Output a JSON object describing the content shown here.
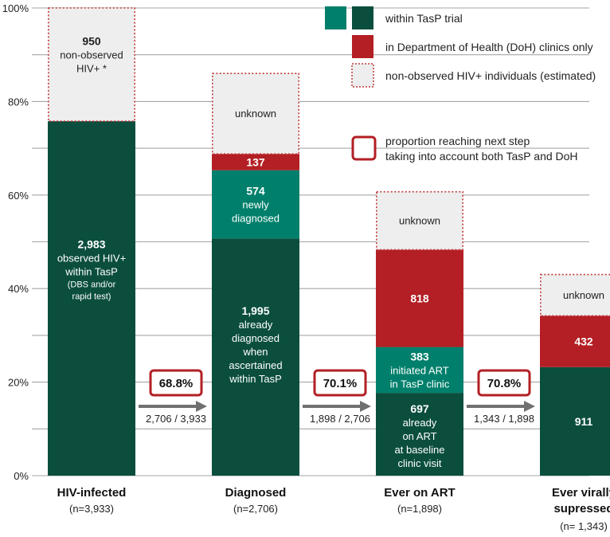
{
  "colors": {
    "dark_green": "#0b4e3e",
    "teal": "#00806c",
    "red": "#b31f24",
    "light_gray": "#eeeeee",
    "dotted_border": "#c0393b",
    "arrow": "#707070",
    "grid": "#a6a6a6"
  },
  "legend": {
    "tasp": "within TasP trial",
    "doh": "in Department of Health (DoH) clinics only",
    "nonobserved": "non-observed HIV+ individuals (estimated)",
    "proportion_line1": "proportion reaching next step",
    "proportion_line2": "taking into account both TasP and DoH"
  },
  "chart_data": {
    "type": "bar",
    "stacked": true,
    "ylim": [
      0,
      100
    ],
    "yticks": [
      "0%",
      "20%",
      "40%",
      "60%",
      "80%",
      "100%"
    ],
    "grid": true,
    "legend_position": "top-right",
    "categories": [
      {
        "label": "HIV-infected",
        "sublabel": "(n=3,933)",
        "segments": [
          {
            "kind": "dark_green",
            "value": 75.8,
            "number": "2,983",
            "lines": [
              "observed HIV+",
              "within TasP"
            ],
            "small_lines": [
              "(DBS and/or",
              "rapid test)"
            ]
          },
          {
            "kind": "nonobserved",
            "value": 24.2,
            "number": "950",
            "lines": [
              "non-observed",
              "HIV+ *"
            ],
            "small_lines": []
          }
        ]
      },
      {
        "label": "Diagnosed",
        "sublabel": "(n=2,706)",
        "segments": [
          {
            "kind": "dark_green",
            "value": 50.7,
            "number": "1,995",
            "lines": [
              "already",
              "diagnosed",
              "when",
              "ascertained",
              "within TasP"
            ],
            "small_lines": []
          },
          {
            "kind": "teal",
            "value": 14.6,
            "number": "574",
            "lines": [
              "newly",
              "diagnosed"
            ],
            "small_lines": []
          },
          {
            "kind": "red",
            "value": 3.5,
            "number": "137",
            "lines": [],
            "small_lines": []
          },
          {
            "kind": "nonobserved",
            "value": 17.2,
            "number": "",
            "lines": [
              "unknown"
            ],
            "small_lines": []
          }
        ]
      },
      {
        "label": "Ever on ART",
        "sublabel": "(n=1,898)",
        "segments": [
          {
            "kind": "dark_green",
            "value": 17.7,
            "number": "697",
            "lines": [
              "already",
              "on ART",
              "at baseline",
              "clinic visit"
            ],
            "small_lines": []
          },
          {
            "kind": "teal",
            "value": 9.8,
            "number": "383",
            "lines": [
              "initiated ART",
              "in TasP clinic"
            ],
            "small_lines": []
          },
          {
            "kind": "red",
            "value": 20.8,
            "number": "818",
            "lines": [],
            "small_lines": []
          },
          {
            "kind": "nonobserved",
            "value": 12.4,
            "number": "",
            "lines": [
              "unknown"
            ],
            "small_lines": []
          }
        ]
      },
      {
        "label": "Ever virally",
        "label2": "supressed",
        "sublabel": "(n= 1,343)",
        "segments": [
          {
            "kind": "dark_green",
            "value": 23.2,
            "number": "911",
            "lines": [],
            "small_lines": []
          },
          {
            "kind": "red",
            "value": 11.0,
            "number": "432",
            "lines": [],
            "small_lines": []
          },
          {
            "kind": "nonobserved",
            "value": 8.8,
            "number": "",
            "lines": [
              "unknown"
            ],
            "small_lines": []
          }
        ]
      }
    ],
    "transitions": [
      {
        "percent": "68.8%",
        "fraction": "2,706 / 3,933"
      },
      {
        "percent": "70.1%",
        "fraction": "1,898 / 2,706"
      },
      {
        "percent": "70.8%",
        "fraction": "1,343 / 1,898"
      }
    ]
  }
}
